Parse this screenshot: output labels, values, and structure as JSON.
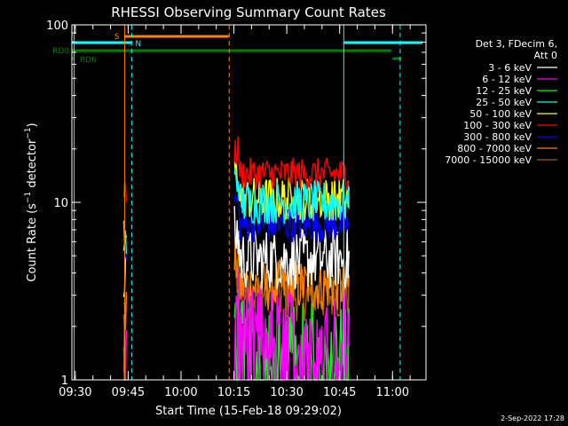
{
  "chart_data": {
    "type": "line",
    "title": "RHESSI Observing Summary Count Rates",
    "xlabel": "Start Time (15-Feb-18 09:29:02)",
    "ylabel": "Count Rate (s⁻¹ detector⁻¹)",
    "ylabel_prefix": "Count Rate (s",
    "ylabel_sup1": "−1",
    "ylabel_mid": " detector",
    "ylabel_sup2": "−1",
    "ylabel_suffix": ")",
    "y_scale": "log",
    "ylim": [
      1,
      100
    ],
    "xlim": [
      "09:29:02",
      "11:09:30"
    ],
    "x_ticks": [
      "09:30",
      "09:45",
      "10:00",
      "10:15",
      "10:30",
      "10:45",
      "11:00"
    ],
    "y_ticks": [
      "1",
      "10",
      "100"
    ],
    "grid": false,
    "legend_title": [
      "Det 3, FDecim 6,",
      "Att 0"
    ],
    "legend_position": "right",
    "series": [
      {
        "name": "3 - 6 keV",
        "color": "#ffffff",
        "v2": 4.8,
        "v1": 3.5,
        "spread": 0.35
      },
      {
        "name": "6 - 12 keV",
        "color": "#ff00ff",
        "v2": 2.0,
        "v1": 1.5,
        "spread": 0.45
      },
      {
        "name": "12 - 25 keV",
        "color": "#00ff00",
        "v2": 1.6,
        "v1": 1.2,
        "spread": 0.5
      },
      {
        "name": "25 - 50 keV",
        "color": "#00ffff",
        "v2": 10.0,
        "v1": 6.0,
        "spread": 0.25
      },
      {
        "name": "50 - 100 keV",
        "color": "#ffff00",
        "v2": 10.5,
        "v1": 6.5,
        "spread": 0.25
      },
      {
        "name": "100 - 300 keV",
        "color": "#ff0000",
        "v2": 14.5,
        "v1": 11.0,
        "spread": 0.18
      },
      {
        "name": "300 - 800 keV",
        "color": "#0000ff",
        "v2": 7.5,
        "v1": 5.5,
        "spread": 0.2
      },
      {
        "name": "800 - 7000 keV",
        "color": "#ff8000",
        "v2": 3.4,
        "v1": 2.4,
        "spread": 0.3
      },
      {
        "name": "7000 - 15000 keV",
        "color": "#a06000",
        "v2": 3.0,
        "v1": 2.1,
        "spread": 0.3
      }
    ],
    "data_segments": [
      {
        "start": "09:43:45",
        "end": "09:44:40"
      },
      {
        "start": "10:15:10",
        "end": "10:47:40"
      }
    ],
    "flags": [
      {
        "label": "S",
        "color": "#ff8000",
        "start": "09:44:00",
        "end": "10:13:30"
      },
      {
        "label": "N",
        "color": "#00ffff",
        "start": "09:29:02",
        "end": "09:46:00"
      },
      {
        "label": "",
        "color": "#00ffff",
        "start": "10:46:10",
        "end": "11:08:30"
      },
      {
        "label": "RD0",
        "color": "#008000",
        "start": "09:29:02",
        "end": "10:59:40"
      },
      {
        "label": "",
        "color": "#008000",
        "start": "11:00:00",
        "end": "11:02:30"
      },
      {
        "label": "RD6",
        "color": "#008000",
        "start": "09:29:02",
        "end": "09:29:30"
      }
    ],
    "vlines": [
      {
        "time": "09:29:40",
        "color": "#00ffff",
        "style": "solid"
      },
      {
        "time": "09:44:00",
        "color": "#ff8000",
        "style": "solid"
      },
      {
        "time": "09:46:00",
        "color": "#00ffff",
        "style": "dashed"
      },
      {
        "time": "10:13:40",
        "color": "#ff8000",
        "style": "dashed"
      },
      {
        "time": "10:46:10",
        "color": "#00ffff",
        "style": "solid"
      },
      {
        "time": "11:02:10",
        "color": "#00ffff",
        "style": "dashed"
      }
    ]
  },
  "footer": {
    "date": "2-Sep-2022 17:28"
  }
}
